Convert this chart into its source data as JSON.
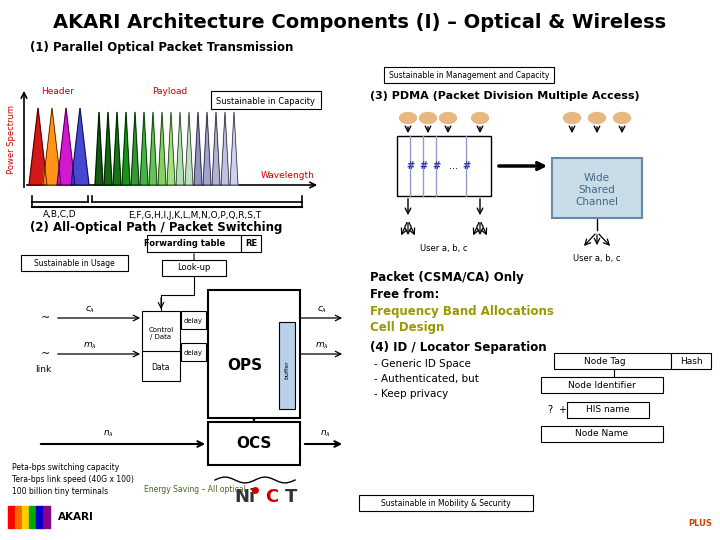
{
  "title": "AKARI Architecture Components (I) – Optical & Wireless",
  "bg_color": "#ffffff",
  "section1_title": "(1) Parallel Optical Packet Transmission",
  "section2_title": "(2) All-Optical Path / Packet Switching",
  "section3_title": "(3) PDMA (Packet Division Multiple Access)",
  "section4_title": "(4) ID / Locator Separation",
  "power_spectrum_label": "Power Spectrum",
  "wavelength_label": "Wavelength",
  "header_label": "Header",
  "payload_label": "Payload",
  "sustainable_capacity": "Sustainable in Capacity",
  "sustainable_management": "Sustainable in Management and Capacity",
  "sustainable_usage": "Sustainable in Usage",
  "sustainable_mobility": "Sustainable in Mobility & Security",
  "forwarding_table": "Forwarding table",
  "lookup": "Look-up",
  "re_label": "RE",
  "ops_label": "OPS",
  "ocs_label": "OCS",
  "buffer_label": "buffer",
  "control_data": "Control\n/ Data",
  "data_label": "Data",
  "delay_label": "delay",
  "link_label": "link",
  "abcd_label": "A,B,C,D",
  "payload_channels": "E,F,G,H,I,J,K,L,M,N,O,P,Q,R,S,T",
  "user_abc": "User a, b, c",
  "wide_shared": "Wide\nShared\nChannel",
  "packet_csma": "Packet (CSMA/CA) Only",
  "free_from": "Free from:",
  "freq_band": "Frequency Band Allocations",
  "cell_design": "Cell Design",
  "id4_items": [
    "- Generic ID Space",
    "- Authenticated, but",
    "- Keep privacy"
  ],
  "node_tag": "Node Tag",
  "node_identifier": "Node Identifier",
  "node_name": "Node Name",
  "hash_label": "Hash",
  "his_name": "HIS name",
  "question": "?",
  "plus": "+",
  "peta_line1": "Peta-bps switching capacity",
  "peta_line2": "Tera-bps link speed (40G x 100)",
  "peta_line3": "100 billion tiny terminals",
  "energy_saving": "Energy Saving – All optical",
  "akari_label": "AKARI",
  "header_peaks_colors": [
    "#cc0000",
    "#ff8800",
    "#cc00cc",
    "#3333cc"
  ],
  "payload_colors": [
    "#004400",
    "#005500",
    "#006600",
    "#008800",
    "#228822",
    "#33aa33",
    "#55bb44",
    "#77cc55",
    "#99dd77",
    "#aaddaa",
    "#bbddbb",
    "#8888bb",
    "#9999cc",
    "#aaaacc",
    "#bbbbdd",
    "#ccccee"
  ],
  "red": "#cc0000",
  "green_yellow": "#888800",
  "blue_text": "#3333aa"
}
